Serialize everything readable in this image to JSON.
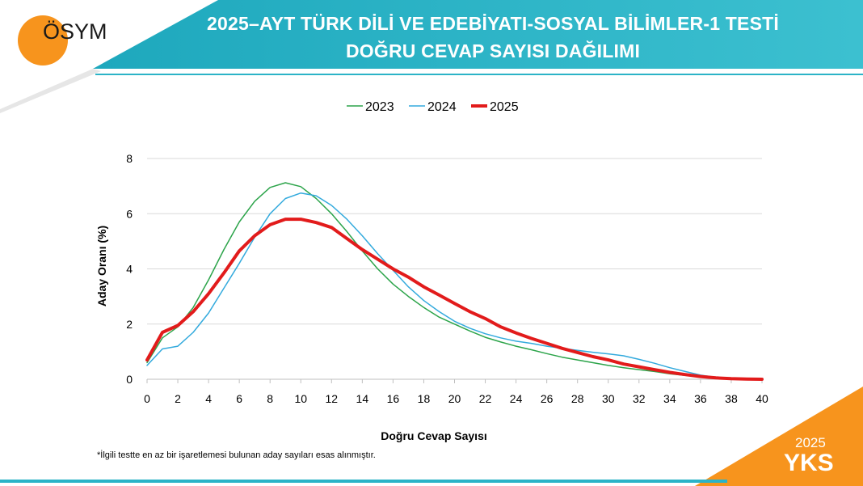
{
  "header": {
    "logo_text": "ÖSYM",
    "title_line1": "2025–AYT TÜRK DİLİ VE EDEBİYATI-SOSYAL BİLİMLER-1 TESTİ",
    "title_line2": "DOĞRU CEVAP SAYISI DAĞILIMI"
  },
  "footnote": "*İlgili testte en az bir işaretlemesi bulunan aday sayıları esas alınmıştır.",
  "badge": {
    "year": "2025",
    "name": "YKS"
  },
  "colors": {
    "header_teal": "#2bb3c7",
    "header_teal_dark": "#0f9bb0",
    "logo_orange": "#f7941d",
    "series_2023": "#2ca44a",
    "series_2024": "#33aadd",
    "series_2025": "#e21b1b",
    "grid": "#d9d9d9"
  },
  "chart_data": {
    "type": "line",
    "xlabel": "Doğru Cevap Sayısı",
    "ylabel": "Aday Oranı (%)",
    "xlim": [
      0,
      40
    ],
    "ylim": [
      0,
      8
    ],
    "x_ticks": [
      0,
      2,
      4,
      6,
      8,
      10,
      12,
      14,
      16,
      18,
      20,
      22,
      24,
      26,
      28,
      30,
      32,
      34,
      36,
      38,
      40
    ],
    "y_ticks": [
      0,
      2,
      4,
      6,
      8
    ],
    "grid": "horizontal",
    "legend_position": "top-center",
    "x": [
      0,
      1,
      2,
      3,
      4,
      5,
      6,
      7,
      8,
      9,
      10,
      11,
      12,
      13,
      14,
      15,
      16,
      17,
      18,
      19,
      20,
      21,
      22,
      23,
      24,
      25,
      26,
      27,
      28,
      29,
      30,
      31,
      32,
      33,
      34,
      35,
      36,
      37,
      38,
      39,
      40
    ],
    "series": [
      {
        "name": "2023",
        "color": "#2ca44a",
        "line_width": "thin",
        "values": [
          0.6,
          1.5,
          1.9,
          2.6,
          3.6,
          4.7,
          5.7,
          6.45,
          6.95,
          7.12,
          6.98,
          6.55,
          6.0,
          5.35,
          4.65,
          4.0,
          3.45,
          3.0,
          2.6,
          2.25,
          2.0,
          1.75,
          1.52,
          1.35,
          1.2,
          1.07,
          0.93,
          0.8,
          0.7,
          0.6,
          0.5,
          0.42,
          0.35,
          0.28,
          0.2,
          0.14,
          0.1,
          0.06,
          0.03,
          0.01,
          0.0
        ]
      },
      {
        "name": "2024",
        "color": "#33aadd",
        "line_width": "thin",
        "values": [
          0.5,
          1.1,
          1.2,
          1.7,
          2.4,
          3.3,
          4.2,
          5.15,
          6.0,
          6.55,
          6.75,
          6.65,
          6.3,
          5.8,
          5.2,
          4.55,
          3.95,
          3.35,
          2.85,
          2.45,
          2.1,
          1.85,
          1.65,
          1.5,
          1.38,
          1.3,
          1.2,
          1.12,
          1.05,
          0.98,
          0.92,
          0.85,
          0.72,
          0.58,
          0.42,
          0.28,
          0.15,
          0.07,
          0.03,
          0.01,
          0.0
        ]
      },
      {
        "name": "2025",
        "color": "#e21b1b",
        "line_width": "thick",
        "values": [
          0.7,
          1.7,
          1.95,
          2.45,
          3.1,
          3.85,
          4.65,
          5.2,
          5.6,
          5.8,
          5.8,
          5.68,
          5.5,
          5.1,
          4.7,
          4.35,
          4.0,
          3.7,
          3.35,
          3.05,
          2.75,
          2.45,
          2.2,
          1.9,
          1.68,
          1.48,
          1.3,
          1.12,
          0.97,
          0.82,
          0.7,
          0.55,
          0.45,
          0.35,
          0.25,
          0.17,
          0.1,
          0.05,
          0.02,
          0.01,
          0.0
        ]
      }
    ]
  }
}
